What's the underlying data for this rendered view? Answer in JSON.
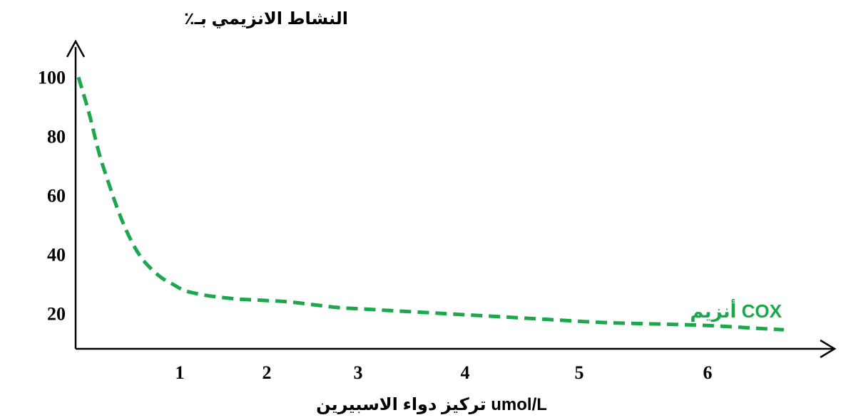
{
  "chart_data": {
    "type": "line",
    "ylabel": "النشاط الانزيمي بـ٪",
    "xlabel": "تركيز دواء الاسبيرين umol/L",
    "x_ticks": [
      "1",
      "2",
      "3",
      "4",
      "5",
      "6"
    ],
    "y_ticks": [
      "20",
      "40",
      "60",
      "80",
      "100"
    ],
    "xlim": [
      0,
      6.9
    ],
    "ylim": [
      10,
      110
    ],
    "grid": false,
    "series": [
      {
        "name": "أنزيم COX",
        "color": "#1aa84a",
        "x": [
          0,
          0.1,
          0.2,
          0.3,
          0.4,
          0.5,
          0.6,
          0.7,
          0.8,
          0.9,
          1.0,
          1.1,
          1.25,
          1.5,
          1.75,
          2.0,
          2.25,
          2.5,
          2.75,
          3.0,
          3.5,
          4.0,
          4.5,
          5.0,
          5.5,
          6.0,
          6.5,
          6.75
        ],
        "y": [
          100,
          88,
          74,
          63,
          53,
          45,
          39,
          35,
          32,
          30,
          28,
          27,
          26,
          25,
          24.5,
          24,
          23,
          22,
          21.5,
          21,
          20,
          19,
          18,
          17,
          16.5,
          16,
          15,
          14.5
        ]
      }
    ]
  }
}
